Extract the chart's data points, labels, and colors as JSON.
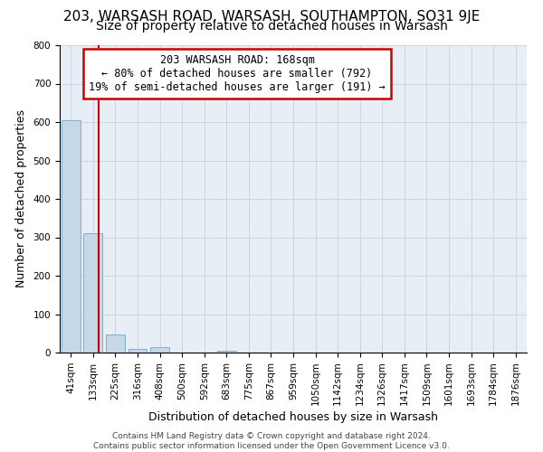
{
  "title1": "203, WARSASH ROAD, WARSASH, SOUTHAMPTON, SO31 9JE",
  "title2": "Size of property relative to detached houses in Warsash",
  "xlabel": "Distribution of detached houses by size in Warsash",
  "ylabel": "Number of detached properties",
  "bar_labels": [
    "41sqm",
    "133sqm",
    "225sqm",
    "316sqm",
    "408sqm",
    "500sqm",
    "592sqm",
    "683sqm",
    "775sqm",
    "867sqm",
    "959sqm",
    "1050sqm",
    "1142sqm",
    "1234sqm",
    "1326sqm",
    "1417sqm",
    "1509sqm",
    "1601sqm",
    "1693sqm",
    "1784sqm",
    "1876sqm"
  ],
  "bar_values": [
    605,
    310,
    47,
    10,
    13,
    0,
    0,
    5,
    0,
    0,
    0,
    0,
    0,
    0,
    0,
    0,
    0,
    0,
    0,
    0,
    0
  ],
  "bar_color": "#c5d8e8",
  "bar_edge_color": "#7bafd4",
  "property_line_x": 1.27,
  "property_line_color": "#cc0000",
  "annotation_title": "203 WARSASH ROAD: 168sqm",
  "annotation_line1": "← 80% of detached houses are smaller (792)",
  "annotation_line2": "19% of semi-detached houses are larger (191) →",
  "annotation_box_edgecolor": "#cc0000",
  "ylim_max": 800,
  "yticks": [
    0,
    100,
    200,
    300,
    400,
    500,
    600,
    700,
    800
  ],
  "grid_color": "#ccd5e0",
  "bg_color": "#e8eef5",
  "footer1": "Contains HM Land Registry data © Crown copyright and database right 2024.",
  "footer2": "Contains public sector information licensed under the Open Government Licence v3.0.",
  "title1_fontsize": 11,
  "title2_fontsize": 10,
  "ann_fontsize": 8.5,
  "axis_label_fontsize": 9,
  "tick_fontsize": 7.5,
  "footer_fontsize": 6.5
}
